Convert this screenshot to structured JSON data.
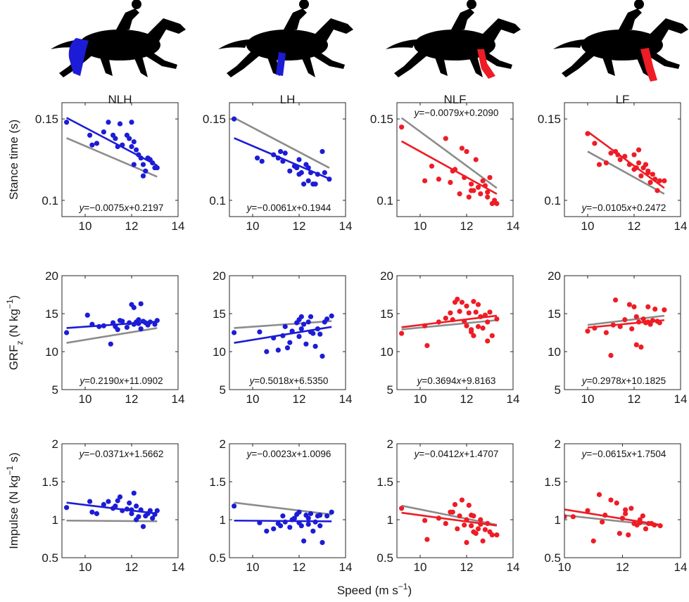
{
  "figure": {
    "columns": [
      "NLH",
      "LH",
      "NLF",
      "LF"
    ],
    "column_colors": [
      "#1c1cd6",
      "#1c1cd6",
      "#ee1c25",
      "#ee1c25"
    ],
    "reference_line_color": "#8c8c8c",
    "xlabel": "Speed (m s",
    "xlabel_sup": "−1",
    "xlabel_end": ")",
    "row_labels": [
      {
        "base": "Stance time (s)",
        "sub": "",
        "mid": "",
        "sup": "",
        "end": ""
      },
      {
        "base": "GRF",
        "sub": "z",
        "mid": " (N kg",
        "sup": "−1",
        "end": ")"
      },
      {
        "base": "Impulse (N kg",
        "sub": "",
        "mid": "",
        "sup": "−1",
        "end": " s)"
      }
    ],
    "silhouette_icons": [
      "horse-nlh-icon",
      "horse-lh-icon",
      "horse-nlf-icon",
      "horse-lf-icon"
    ],
    "highlight_colors": [
      "#1c1cd6",
      "#1c1cd6",
      "#ee1c25",
      "#ee1c25"
    ]
  },
  "chart_data": [
    {
      "type": "scatter",
      "row": 0,
      "col": 0,
      "title": "NLH",
      "xlim": [
        9,
        14
      ],
      "xticks": [
        10,
        12,
        14
      ],
      "ylim": [
        0.09,
        0.16
      ],
      "yticks": [
        0.1,
        0.15
      ],
      "ytick_labels": [
        "0.1",
        "0.15"
      ],
      "fit": {
        "slope": -0.0075,
        "intercept": 0.2197
      },
      "reference_fit": {
        "slope": -0.0061,
        "intercept": 0.1944
      },
      "equation": "y=−0.0075x+0.2197",
      "equation_pos": "bottom",
      "points": {
        "x": [
          9.2,
          10.2,
          10.5,
          10.8,
          11,
          11.2,
          11.3,
          11.5,
          11.6,
          11.8,
          11.9,
          12,
          12,
          12.1,
          12.2,
          12.3,
          12.4,
          12.5,
          12.6,
          12.7,
          12.8,
          12.9,
          13,
          13.1,
          10.3,
          11.4,
          12.1,
          12.5
        ],
        "y": [
          0.148,
          0.14,
          0.135,
          0.142,
          0.148,
          0.14,
          0.138,
          0.147,
          0.134,
          0.14,
          0.138,
          0.148,
          0.133,
          0.136,
          0.131,
          0.128,
          0.126,
          0.122,
          0.118,
          0.126,
          0.125,
          0.123,
          0.12,
          0.12,
          0.134,
          0.133,
          0.122,
          0.115
        ]
      }
    },
    {
      "type": "scatter",
      "row": 0,
      "col": 1,
      "title": "LH",
      "xlim": [
        9,
        14
      ],
      "xticks": [
        10,
        12,
        14
      ],
      "ylim": [
        0.09,
        0.16
      ],
      "yticks": [
        0.1,
        0.15
      ],
      "ytick_labels": [
        "0.1",
        "0.15"
      ],
      "fit": {
        "slope": -0.0061,
        "intercept": 0.1944
      },
      "reference_fit": {
        "slope": -0.0075,
        "intercept": 0.2197
      },
      "equation": "y=−0.0061x+0.1944",
      "equation_pos": "bottom",
      "points": {
        "x": [
          9.2,
          10.2,
          10.4,
          10.9,
          11.1,
          11.3,
          11.4,
          11.6,
          11.8,
          12,
          12,
          12.1,
          12.2,
          12.3,
          12.4,
          12.5,
          12.6,
          12.8,
          13,
          13.1,
          13.3,
          11.2,
          11.9,
          12.4,
          12.7
        ],
        "y": [
          0.15,
          0.126,
          0.124,
          0.128,
          0.126,
          0.124,
          0.129,
          0.118,
          0.121,
          0.116,
          0.125,
          0.117,
          0.11,
          0.122,
          0.12,
          0.117,
          0.11,
          0.116,
          0.13,
          0.117,
          0.113,
          0.13,
          0.12,
          0.112,
          0.11
        ]
      }
    },
    {
      "type": "scatter",
      "row": 0,
      "col": 2,
      "title": "NLF",
      "xlim": [
        9,
        14
      ],
      "xticks": [
        10,
        12,
        14
      ],
      "ylim": [
        0.09,
        0.16
      ],
      "yticks": [
        0.1,
        0.15
      ],
      "ytick_labels": [
        "0.1",
        "0.15"
      ],
      "fit": {
        "slope": -0.0079,
        "intercept": 0.209
      },
      "reference_fit": {
        "slope": -0.0105,
        "intercept": 0.2472
      },
      "equation": "y=−0.0079x+0.2090",
      "equation_pos": "top",
      "points": {
        "x": [
          9.2,
          10.2,
          10.5,
          10.8,
          11.1,
          11.3,
          11.5,
          11.7,
          11.8,
          11.9,
          12,
          12.1,
          12.2,
          12.3,
          12.4,
          12.5,
          12.6,
          12.7,
          12.8,
          12.9,
          13,
          13.1,
          13.2,
          13.3,
          11.4,
          12.2,
          12.9
        ],
        "y": [
          0.145,
          0.112,
          0.121,
          0.113,
          0.138,
          0.111,
          0.119,
          0.104,
          0.132,
          0.114,
          0.13,
          0.102,
          0.11,
          0.106,
          0.125,
          0.108,
          0.104,
          0.112,
          0.109,
          0.102,
          0.114,
          0.098,
          0.1,
          0.098,
          0.118,
          0.106,
          0.105
        ]
      }
    },
    {
      "type": "scatter",
      "row": 0,
      "col": 3,
      "title": "LF",
      "xlim": [
        9,
        14
      ],
      "xticks": [
        10,
        12,
        14
      ],
      "ylim": [
        0.09,
        0.16
      ],
      "yticks": [
        0.1,
        0.15
      ],
      "ytick_labels": [
        "0.1",
        "0.15"
      ],
      "fit": {
        "slope": -0.0105,
        "intercept": 0.2472
      },
      "reference_fit": {
        "slope": -0.0079,
        "intercept": 0.209
      },
      "equation": "y=−0.0105x+0.2472",
      "equation_pos": "bottom",
      "points": {
        "x": [
          10,
          10.3,
          10.8,
          11,
          11.2,
          11.4,
          11.6,
          11.8,
          12,
          12,
          12.1,
          12.2,
          12.3,
          12.4,
          12.5,
          12.6,
          12.7,
          12.8,
          12.9,
          13,
          13.1,
          13.3,
          11.3,
          12.2,
          12.6,
          10.5
        ],
        "y": [
          0.141,
          0.135,
          0.123,
          0.129,
          0.13,
          0.125,
          0.127,
          0.122,
          0.128,
          0.119,
          0.12,
          0.123,
          0.115,
          0.12,
          0.122,
          0.117,
          0.111,
          0.116,
          0.113,
          0.106,
          0.112,
          0.112,
          0.128,
          0.131,
          0.118,
          0.122
        ]
      }
    },
    {
      "type": "scatter",
      "row": 1,
      "col": 0,
      "title": "",
      "xlim": [
        9,
        14
      ],
      "xticks": [
        10,
        12,
        14
      ],
      "ylim": [
        5,
        20
      ],
      "yticks": [
        5,
        10,
        15,
        20
      ],
      "ytick_labels": [
        "5",
        "10",
        "15",
        "20"
      ],
      "fit": {
        "slope": 0.219,
        "intercept": 11.0902
      },
      "reference_fit": {
        "slope": 0.5018,
        "intercept": 6.535
      },
      "equation": "y=0.2190x+11.0902",
      "equation_pos": "bottom",
      "points": {
        "x": [
          9.2,
          10.1,
          10.3,
          10.8,
          11.1,
          11.2,
          11.3,
          11.5,
          11.6,
          11.8,
          11.9,
          12,
          12.1,
          12.1,
          12.2,
          12.3,
          12.4,
          12.4,
          12.5,
          12.6,
          12.7,
          12.8,
          13,
          13.1,
          10.6,
          11.4,
          12.3
        ],
        "y": [
          12.5,
          14.8,
          13.6,
          13.4,
          11.0,
          13.8,
          13.3,
          14.1,
          14.0,
          13.2,
          13.8,
          16.2,
          15.8,
          13.6,
          13.9,
          14.2,
          16.3,
          13.0,
          14.0,
          13.8,
          13.5,
          13.9,
          13.6,
          14.1,
          13.3,
          12.9,
          13.7
        ]
      }
    },
    {
      "type": "scatter",
      "row": 1,
      "col": 1,
      "title": "",
      "xlim": [
        9,
        14
      ],
      "xticks": [
        10,
        12,
        14
      ],
      "ylim": [
        5,
        20
      ],
      "yticks": [
        5,
        10,
        15,
        20
      ],
      "ytick_labels": [
        "5",
        "10",
        "15",
        "20"
      ],
      "fit": {
        "slope": 0.5018,
        "intercept": 6.535
      },
      "reference_fit": {
        "slope": 0.219,
        "intercept": 11.0902
      },
      "equation": "y=0.5018x+6.5350",
      "equation_pos": "bottom",
      "points": {
        "x": [
          9.2,
          10.3,
          10.6,
          10.9,
          11.1,
          11.3,
          11.4,
          11.6,
          11.7,
          11.9,
          12,
          12,
          12.1,
          12.2,
          12.3,
          12.4,
          12.5,
          12.6,
          12.7,
          12.8,
          12.9,
          13,
          13.2,
          13.4,
          11.5,
          12.1,
          12.5,
          13.1
        ],
        "y": [
          12.5,
          12.6,
          10.0,
          11.8,
          10.2,
          12.1,
          13.3,
          11.2,
          12.7,
          13.8,
          14.2,
          12.0,
          14.6,
          13.6,
          11.0,
          13.9,
          14.6,
          12.4,
          10.7,
          13.0,
          12.3,
          9.4,
          14.3,
          14.7,
          10.5,
          13.0,
          12.6,
          13.9
        ]
      }
    },
    {
      "type": "scatter",
      "row": 1,
      "col": 2,
      "title": "",
      "xlim": [
        9,
        14
      ],
      "xticks": [
        10,
        12,
        14
      ],
      "ylim": [
        5,
        20
      ],
      "yticks": [
        5,
        10,
        15,
        20
      ],
      "ytick_labels": [
        "5",
        "10",
        "15",
        "20"
      ],
      "fit": {
        "slope": 0.3694,
        "intercept": 9.8163
      },
      "reference_fit": {
        "slope": 0.2978,
        "intercept": 10.1825
      },
      "equation": "y=0.3694x+9.8163",
      "equation_pos": "bottom",
      "points": {
        "x": [
          9.2,
          10.2,
          10.3,
          10.8,
          11.1,
          11.3,
          11.5,
          11.6,
          11.7,
          11.8,
          11.9,
          12,
          12,
          12.1,
          12.2,
          12.3,
          12.3,
          12.4,
          12.5,
          12.6,
          12.7,
          12.8,
          12.9,
          13,
          13.1,
          13.3,
          11.4,
          12.2,
          12.5,
          12.9
        ],
        "y": [
          12.4,
          13.4,
          10.8,
          13.9,
          14.4,
          15.1,
          16.5,
          16.9,
          15.3,
          16.5,
          14.0,
          13.4,
          16.0,
          15.1,
          12.9,
          16.6,
          12.1,
          15.2,
          16.2,
          14.6,
          13.1,
          14.8,
          11.4,
          15.2,
          12.1,
          14.3,
          14.2,
          12.6,
          13.3,
          13.9
        ]
      }
    },
    {
      "type": "scatter",
      "row": 1,
      "col": 3,
      "title": "",
      "xlim": [
        9,
        14
      ],
      "xticks": [
        10,
        12,
        14
      ],
      "ylim": [
        5,
        20
      ],
      "yticks": [
        5,
        10,
        15,
        20
      ],
      "ytick_labels": [
        "5",
        "10",
        "15",
        "20"
      ],
      "fit": {
        "slope": 0.2978,
        "intercept": 10.1825
      },
      "reference_fit": {
        "slope": 0.3694,
        "intercept": 9.8163
      },
      "equation": "y=0.2978x+10.1825",
      "equation_pos": "bottom",
      "points": {
        "x": [
          10,
          10.3,
          10.8,
          11,
          11.2,
          11.4,
          11.6,
          11.8,
          11.9,
          12,
          12.1,
          12.2,
          12.3,
          12.4,
          12.5,
          12.6,
          12.7,
          12.8,
          12.9,
          13,
          13.1,
          13.3,
          11.1,
          12.1,
          12.6
        ],
        "y": [
          12.7,
          13.1,
          12.5,
          9.5,
          16.8,
          13.3,
          14.2,
          16.2,
          13.0,
          15.9,
          10.9,
          13.9,
          10.6,
          14.3,
          13.8,
          15.9,
          13.6,
          14.1,
          15.6,
          14.0,
          13.8,
          15.5,
          13.5,
          14.6,
          13.9
        ]
      }
    },
    {
      "type": "scatter",
      "row": 2,
      "col": 0,
      "title": "",
      "xlim": [
        9,
        14
      ],
      "xticks": [
        10,
        12,
        14
      ],
      "ylim": [
        0.5,
        2
      ],
      "yticks": [
        0.5,
        1,
        1.5,
        2
      ],
      "ytick_labels": [
        "0.5",
        "1",
        "1.5",
        "2"
      ],
      "fit": {
        "slope": -0.0371,
        "intercept": 1.5662
      },
      "reference_fit": {
        "slope": -0.0023,
        "intercept": 1.0096
      },
      "equation": "y=−0.0371x+1.5662",
      "equation_pos": "top",
      "points": {
        "x": [
          9.2,
          10.2,
          10.5,
          10.8,
          11,
          11.2,
          11.3,
          11.5,
          11.6,
          11.8,
          11.9,
          12,
          12,
          12.1,
          12.2,
          12.3,
          12.4,
          12.5,
          12.6,
          12.7,
          12.8,
          12.9,
          13,
          13.1,
          10.3,
          11.4,
          12.2
        ],
        "y": [
          1.16,
          1.24,
          1.08,
          1.2,
          1.24,
          1.15,
          1.18,
          1.3,
          1.12,
          1.14,
          1.22,
          1.13,
          1.08,
          1.35,
          1.18,
          1.04,
          1.13,
          0.91,
          1.05,
          1.08,
          1.12,
          1.02,
          1.07,
          1.12,
          1.1,
          1.25,
          1.0
        ]
      }
    },
    {
      "type": "scatter",
      "row": 2,
      "col": 1,
      "title": "",
      "xlim": [
        9,
        14
      ],
      "xticks": [
        10,
        12,
        14
      ],
      "ylim": [
        0.5,
        2
      ],
      "yticks": [
        0.5,
        1,
        1.5,
        2
      ],
      "ytick_labels": [
        "0.5",
        "1",
        "1.5",
        "2"
      ],
      "fit": {
        "slope": -0.0023,
        "intercept": 1.0096
      },
      "reference_fit": {
        "slope": -0.0371,
        "intercept": 1.5662
      },
      "equation": "y=−0.0023x+1.0096",
      "equation_pos": "top",
      "points": {
        "x": [
          9.2,
          10.3,
          10.6,
          10.9,
          11.1,
          11.3,
          11.4,
          11.6,
          11.7,
          11.9,
          12,
          12,
          12.1,
          12.2,
          12.3,
          12.4,
          12.5,
          12.6,
          12.7,
          12.8,
          12.9,
          13,
          13.2,
          13.4,
          11.2,
          11.8,
          12.4,
          12.9
        ],
        "y": [
          1.18,
          0.96,
          0.85,
          0.88,
          0.95,
          1.05,
          0.97,
          0.9,
          1.0,
          1.07,
          0.96,
          1.1,
          0.92,
          0.72,
          1.06,
          1.02,
          1.08,
          0.85,
          0.97,
          1.05,
          0.92,
          0.7,
          1.05,
          1.1,
          0.92,
          1.02,
          0.94,
          1.06
        ]
      }
    },
    {
      "type": "scatter",
      "row": 2,
      "col": 2,
      "title": "",
      "xlim": [
        9,
        14
      ],
      "xticks": [
        10,
        12,
        14
      ],
      "ylim": [
        0.5,
        2
      ],
      "yticks": [
        0.5,
        1,
        1.5,
        2
      ],
      "ytick_labels": [
        "0.5",
        "1",
        "1.5",
        "2"
      ],
      "fit": {
        "slope": -0.0412,
        "intercept": 1.4707
      },
      "reference_fit": {
        "slope": -0.0615,
        "intercept": 1.7504
      },
      "equation": "y=−0.0412x+1.4707",
      "equation_pos": "top",
      "points": {
        "x": [
          9.2,
          10.2,
          10.3,
          10.8,
          11.1,
          11.3,
          11.5,
          11.6,
          11.7,
          11.8,
          11.9,
          12,
          12,
          12.1,
          12.2,
          12.3,
          12.3,
          12.4,
          12.5,
          12.6,
          12.7,
          12.8,
          12.9,
          13,
          13.1,
          13.3,
          11.4,
          12.2,
          12.6
        ],
        "y": [
          1.15,
          0.99,
          0.74,
          1.02,
          0.95,
          1.1,
          1.2,
          0.88,
          1.05,
          1.26,
          0.93,
          1.0,
          0.7,
          1.19,
          0.92,
          0.84,
          1.05,
          0.82,
          0.88,
          1.0,
          0.72,
          0.87,
          0.95,
          0.84,
          0.8,
          0.8,
          1.1,
          1.06,
          0.94
        ]
      }
    },
    {
      "type": "scatter",
      "row": 2,
      "col": 3,
      "title": "",
      "xlim": [
        10,
        14
      ],
      "xticks": [
        10,
        12,
        14
      ],
      "ylim": [
        0.5,
        2
      ],
      "yticks": [
        0.5,
        1,
        1.5,
        2
      ],
      "ytick_labels": [
        "0.5",
        "1",
        "1.5",
        "2"
      ],
      "fit": {
        "slope": -0.0615,
        "intercept": 1.7504
      },
      "reference_fit": {
        "slope": -0.0412,
        "intercept": 1.4707
      },
      "equation": "y=−0.0615x+1.7504",
      "equation_pos": "top",
      "points": {
        "x": [
          10,
          10.3,
          10.8,
          11,
          11.2,
          11.4,
          11.6,
          11.8,
          11.9,
          12,
          12.1,
          12.2,
          12.3,
          12.4,
          12.5,
          12.6,
          12.7,
          12.8,
          12.9,
          13,
          13.1,
          13.3,
          11.3,
          12.1,
          12.6
        ],
        "y": [
          1.04,
          1.04,
          1.12,
          0.72,
          1.33,
          1.06,
          1.26,
          1.22,
          0.82,
          1.02,
          1.08,
          0.8,
          1.15,
          0.95,
          0.93,
          1.0,
          1.05,
          0.88,
          0.95,
          0.95,
          0.93,
          0.92,
          0.97,
          1.13,
          0.96
        ]
      }
    }
  ]
}
